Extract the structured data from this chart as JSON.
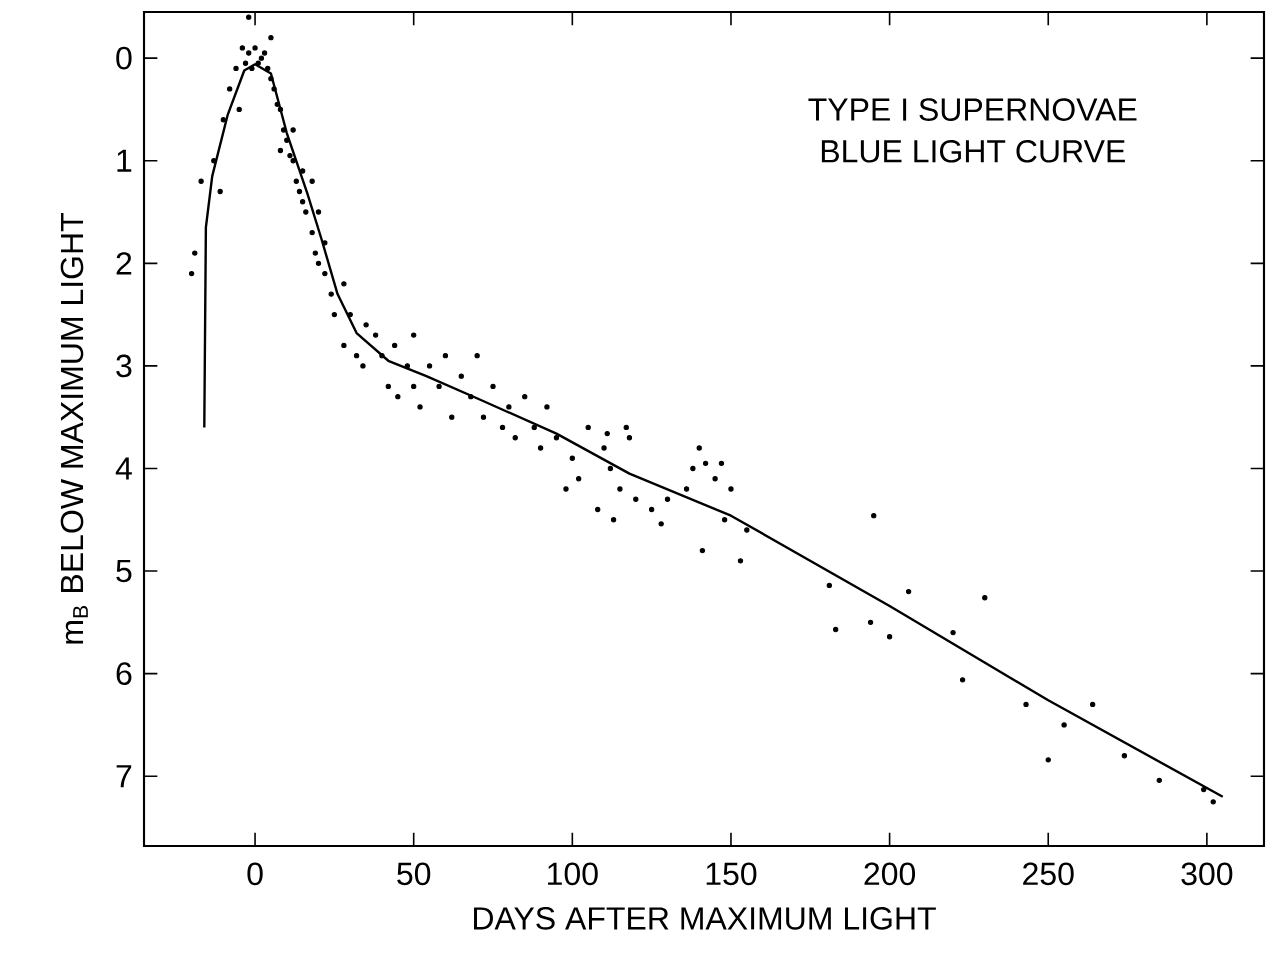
{
  "chart_data": {
    "type": "scatter",
    "xlabel": "DAYS AFTER MAXIMUM LIGHT",
    "ylabel": "m$_{B}$ BELOW MAXIMUM LIGHT",
    "annotations": [
      "TYPE I SUPERNOVAE",
      "BLUE LIGHT CURVE"
    ],
    "xlim": [
      -35,
      318
    ],
    "ylim": [
      7.68,
      -0.45
    ],
    "xticks": [
      0,
      50,
      100,
      150,
      200,
      250,
      300
    ],
    "yticks": [
      0,
      1,
      2,
      3,
      4,
      5,
      6,
      7
    ],
    "grid": false,
    "series": [
      {
        "marker": "circle",
        "color": "#000000",
        "x": [
          -20,
          -19,
          -17,
          -13,
          -11,
          -10,
          -8,
          -6,
          -5,
          -4,
          -3,
          -2,
          -2,
          -1,
          0,
          1,
          2,
          3,
          4,
          5,
          5,
          6,
          7,
          8,
          8,
          9,
          10,
          11,
          12,
          12,
          13,
          14,
          15,
          15,
          16,
          18,
          18,
          19,
          20,
          20,
          22,
          22,
          24,
          25,
          28,
          28,
          30,
          32,
          34,
          35,
          38,
          40,
          42,
          44,
          45,
          48,
          50,
          50,
          52,
          55,
          58,
          60,
          62,
          65,
          68,
          70,
          72,
          75,
          78,
          80,
          82,
          85,
          88,
          90,
          92,
          95,
          98,
          100,
          102,
          105,
          108,
          110,
          111,
          112,
          113,
          115,
          117,
          118,
          120,
          125,
          128,
          130,
          136,
          138,
          140,
          141,
          142,
          145,
          147,
          148,
          150,
          153,
          155,
          181,
          183,
          194,
          195,
          200,
          206,
          220,
          223,
          230,
          243,
          250,
          255,
          264,
          274,
          285,
          299,
          302
        ],
        "values": [
          2.1,
          1.9,
          1.2,
          1.0,
          1.3,
          0.6,
          0.3,
          0.1,
          0.5,
          -0.1,
          0.05,
          -0.05,
          -0.4,
          0.1,
          -0.1,
          0.05,
          0.0,
          -0.05,
          0.1,
          0.2,
          -0.2,
          0.3,
          0.45,
          0.5,
          0.9,
          0.7,
          0.8,
          0.95,
          1.0,
          0.7,
          1.2,
          1.3,
          1.4,
          1.1,
          1.5,
          1.7,
          1.2,
          1.9,
          2.0,
          1.5,
          2.1,
          1.8,
          2.3,
          2.5,
          2.2,
          2.8,
          2.5,
          2.9,
          3.0,
          2.6,
          2.7,
          2.9,
          3.2,
          2.8,
          3.3,
          3.0,
          2.7,
          3.2,
          3.4,
          3.0,
          3.2,
          2.9,
          3.5,
          3.1,
          3.3,
          2.9,
          3.5,
          3.2,
          3.6,
          3.4,
          3.7,
          3.3,
          3.6,
          3.8,
          3.4,
          3.7,
          4.2,
          3.9,
          4.1,
          3.6,
          4.4,
          3.8,
          3.66,
          4.0,
          4.5,
          4.2,
          3.6,
          3.7,
          4.3,
          4.4,
          4.54,
          4.3,
          4.2,
          4.0,
          3.8,
          4.8,
          3.95,
          4.1,
          3.95,
          4.5,
          4.2,
          4.9,
          4.6,
          5.14,
          5.57,
          5.5,
          4.46,
          5.64,
          5.2,
          5.6,
          6.06,
          5.26,
          6.3,
          6.84,
          6.5,
          6.3,
          6.8,
          7.04,
          7.13,
          7.25
        ]
      },
      {
        "type": "line",
        "marker": "none",
        "line_style": "solid",
        "color": "#000000",
        "x": [
          -16,
          -15.5,
          -13.5,
          -8.6,
          -3.4,
          0,
          5,
          10,
          16.5,
          21,
          26,
          32,
          42,
          54,
          71,
          95,
          118,
          150,
          200,
          250,
          305
        ],
        "values": [
          3.6,
          1.65,
          1.15,
          0.55,
          0.12,
          0.06,
          0.15,
          0.73,
          1.32,
          1.77,
          2.3,
          2.68,
          2.95,
          3.1,
          3.33,
          3.66,
          4.05,
          4.46,
          5.34,
          6.26,
          7.2
        ]
      }
    ]
  }
}
